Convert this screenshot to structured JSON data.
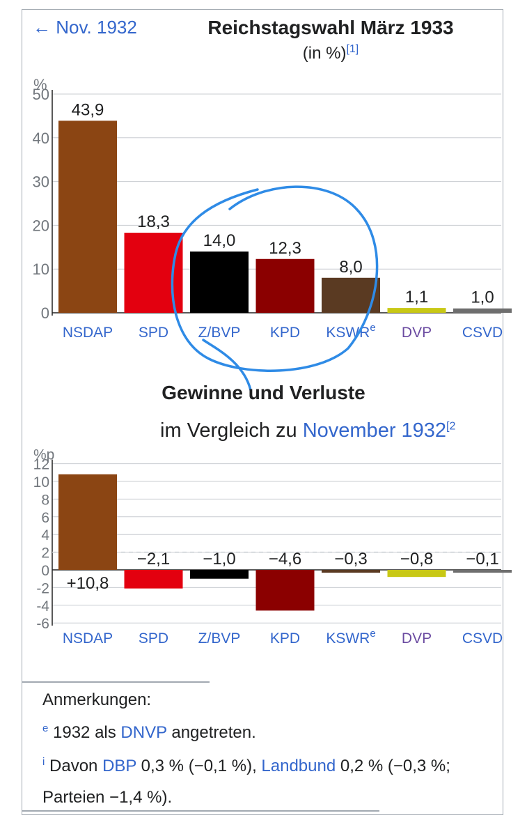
{
  "header": {
    "prev_link": "← Nov. 1932",
    "title": "Reichstagswahl März 1933",
    "subtitle": "(in %)",
    "subtitle_ref": "[1]"
  },
  "section2": {
    "title": "Gewinne und Verluste",
    "subtitle_prefix": "im Vergleich zu ",
    "subtitle_link": "November 1932",
    "subtitle_ref": "[2"
  },
  "chart_data": [
    {
      "type": "bar",
      "ylabel": "%",
      "ylim": [
        0,
        50
      ],
      "yticks": [
        "0",
        "10",
        "20",
        "30",
        "40",
        "50"
      ],
      "grid": true,
      "categories": [
        "NSDAP",
        "SPD",
        "Z/BVP",
        "KPD",
        "KSWR",
        "DVP",
        "CSVD"
      ],
      "category_sup": [
        "",
        "",
        "",
        "",
        "e",
        "",
        ""
      ],
      "values": [
        43.9,
        18.3,
        14.0,
        12.3,
        8.0,
        1.1,
        1.0
      ],
      "value_labels": [
        "43,9",
        "18,3",
        "14,0",
        "12,3",
        "8,0",
        "1,1",
        "1,0"
      ],
      "colors": [
        "#8B4513",
        "#E3000F",
        "#000000",
        "#8B0000",
        "#5A3A22",
        "#C8C815",
        "#6E6E6E"
      ],
      "label_colors": [
        "#3366cc",
        "#3366cc",
        "#3366cc",
        "#3366cc",
        "#3366cc",
        "#6b4ba1",
        "#3366cc"
      ]
    },
    {
      "type": "bar",
      "ylabel": "%p",
      "ylim": [
        -7,
        12
      ],
      "yticks": [
        "-6",
        "-4",
        "-2",
        "0",
        "2",
        "4",
        "6",
        "8",
        "10",
        "12"
      ],
      "grid": true,
      "categories": [
        "NSDAP",
        "SPD",
        "Z/BVP",
        "KPD",
        "KSWR",
        "DVP",
        "CSVD"
      ],
      "category_sup": [
        "",
        "",
        "",
        "",
        "e",
        "",
        ""
      ],
      "values": [
        10.8,
        -2.1,
        -1.0,
        -4.6,
        -0.3,
        -0.8,
        -0.1
      ],
      "value_labels": [
        "+10,8",
        "−2,1",
        "−1,0",
        "−4,6",
        "−0,3",
        "−0,8",
        "−0,1"
      ],
      "colors": [
        "#8B4513",
        "#E3000F",
        "#000000",
        "#8B0000",
        "#5A3A22",
        "#C8C815",
        "#6E6E6E"
      ],
      "label_colors": [
        "#3366cc",
        "#3366cc",
        "#3366cc",
        "#3366cc",
        "#3366cc",
        "#6b4ba1",
        "#3366cc"
      ]
    }
  ],
  "notes": {
    "heading": "Anmerkungen:",
    "note_e_mark": "e",
    "note_e_prefix": "1932 als ",
    "note_e_link": "DNVP",
    "note_e_suffix": " angetreten.",
    "note_i_mark": "i",
    "note_i_prefix": "Davon ",
    "note_i_link1": "DBP",
    "note_i_mid": " 0,3 % (−0,1 %), ",
    "note_i_link2": "Landbund",
    "note_i_suffix": " 0,2 % (−0,3 %;",
    "note_i_line2": "Parteien −1,4 %)."
  },
  "annotation": {
    "color": "#2f8be6"
  }
}
